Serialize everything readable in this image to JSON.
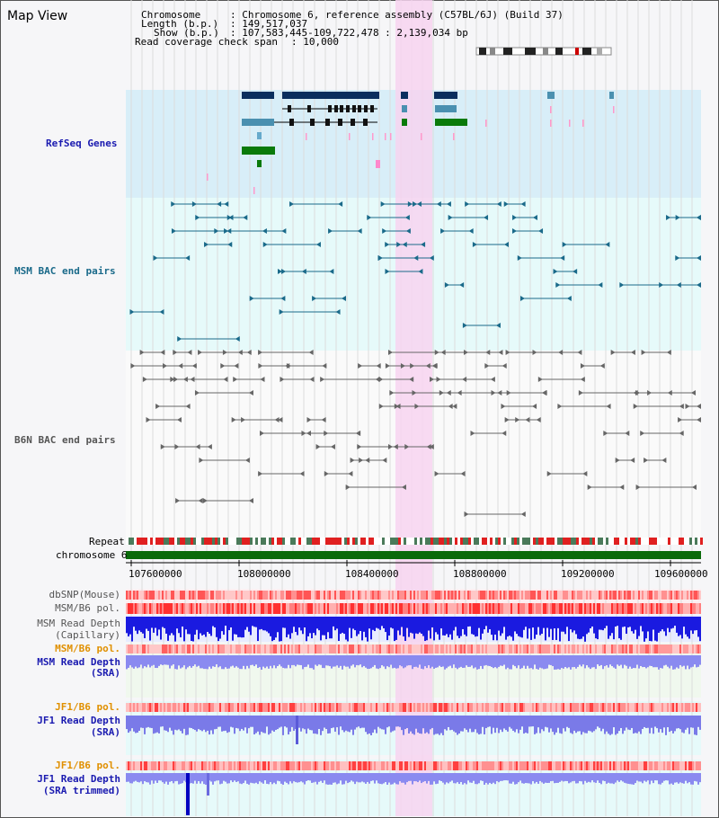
{
  "app": {
    "title": "Map View"
  },
  "header": {
    "chromosome_label": "Chromosome",
    "chromosome_value": ": Chromosome 6, reference assembly (C57BL/6J) (Build 37)",
    "length_label": "Length (b.p.)",
    "length_value": ": 149,517,037",
    "show_label": "Show (b.p.)",
    "show_value": ": 107,583,445-109,722,478 : 2,139,034 bp",
    "coverage_label": "Read coverage check span",
    "coverage_value": ": 10,000"
  },
  "tracks": {
    "refseq": "RefSeq Genes",
    "msm_bac": "MSM BAC end pairs",
    "b6n_bac": "B6N BAC end pairs",
    "repeat": "Repeat",
    "chromosome": "chromosome 6",
    "dbsnp": "dbSNP(Mouse)",
    "msm_b6_pol": "MSM/B6 pol.",
    "msm_depth_cap_1": "MSM Read Depth",
    "msm_depth_cap_2": "(Capillary)",
    "msm_b6_pol2": "MSM/B6 pol.",
    "msm_depth_sra_1": "MSM Read Depth",
    "msm_depth_sra_2": "(SRA)",
    "jf1_pol": "JF1/B6 pol.",
    "jf1_depth_1": "JF1 Read Depth",
    "jf1_depth_2": "(SRA)",
    "jf1_pol2": "JF1/B6 pol.",
    "jf1_trim_1": "JF1 Read Depth",
    "jf1_trim_2": "(SRA trimmed)"
  },
  "axis": {
    "ticks": [
      "107600000",
      "108000000",
      "108400000",
      "108800000",
      "109200000",
      "109600000"
    ]
  },
  "colors": {
    "refseq_bg": "#d8eef8",
    "bac_bg": "#e6fafa",
    "highlight": "#f7d4f0",
    "refseq_label": "#1a1ab0",
    "msm_label": "#1a6a8a",
    "b6n_label": "#555555",
    "orange_label": "#e09000",
    "blue_label": "#1a1ab0",
    "chromosome_bar": "#0a6a0a"
  }
}
